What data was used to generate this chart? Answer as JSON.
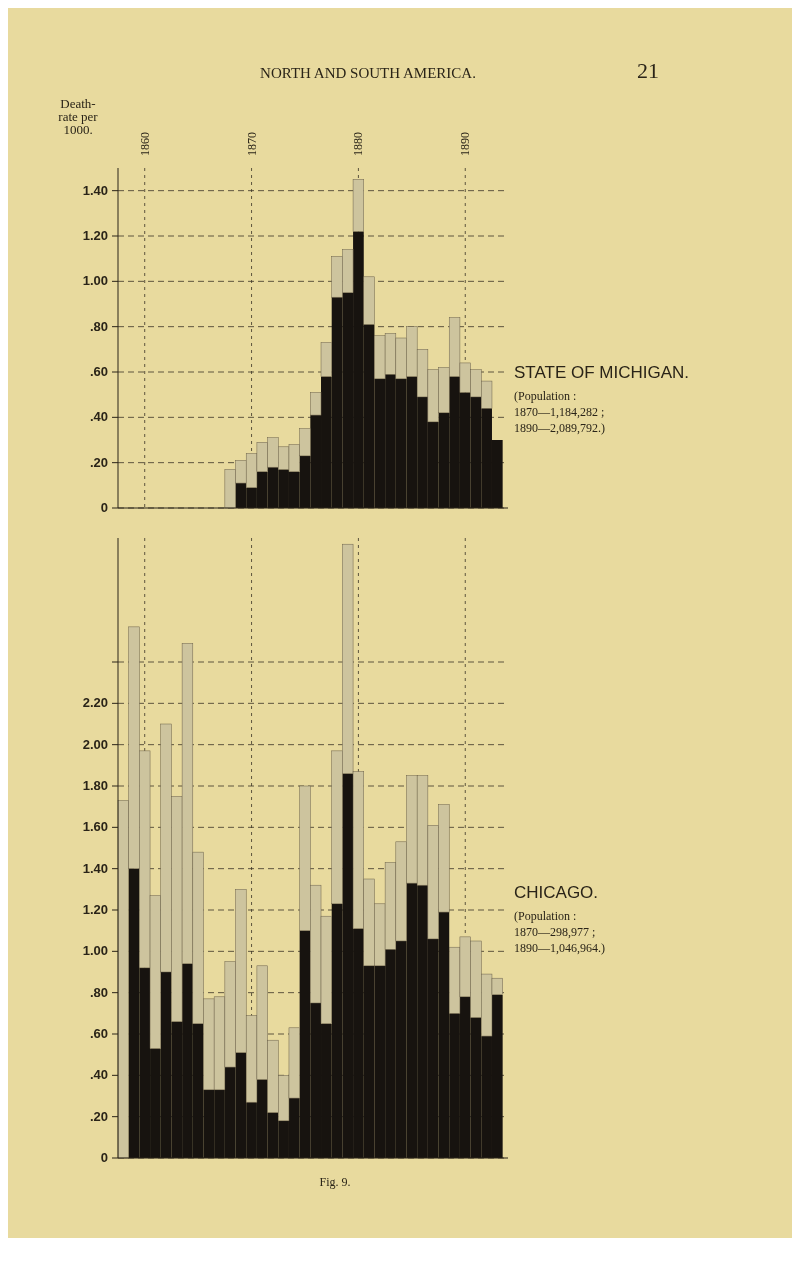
{
  "chart_data": [
    {
      "type": "bar",
      "title": "STATE OF MICHIGAN.",
      "subtitle": "(Population :\n1870—1,184,282 ;\n1890—2,089,792.)",
      "ylabel": "Death-\nrate per\n1000.",
      "annotations": [
        "NORTH AND SOUTH AMERICA.",
        "21"
      ],
      "x": [
        1868,
        1869,
        1870,
        1871,
        1872,
        1873,
        1874,
        1875,
        1876,
        1877,
        1878,
        1879,
        1880,
        1881,
        1882,
        1883,
        1884,
        1885,
        1886,
        1887,
        1888,
        1889,
        1890,
        1891,
        1892,
        1893
      ],
      "stacked": true,
      "series": [
        {
          "color": "#17130f",
          "values": [
            0,
            0.11,
            0.09,
            0.16,
            0.18,
            0.17,
            0.16,
            0.23,
            0.41,
            0.58,
            0.93,
            0.95,
            1.22,
            0.81,
            0.57,
            0.59,
            0.57,
            0.58,
            0.49,
            0.38,
            0.42,
            0.58,
            0.51,
            0.49,
            0.44,
            0.3
          ]
        },
        {
          "color": "#cdc49e",
          "values": [
            0.17,
            0.1,
            0.15,
            0.13,
            0.13,
            0.1,
            0.12,
            0.12,
            0.1,
            0.15,
            0.18,
            0.19,
            0.23,
            0.21,
            0.19,
            0.18,
            0.18,
            0.22,
            0.21,
            0.23,
            0.2,
            0.26,
            0.13,
            0.12,
            0.12,
            0
          ]
        }
      ],
      "xlim": [
        1857.5,
        1894
      ],
      "xticks": [
        1860,
        1870,
        1880,
        1890
      ],
      "ylim": [
        0,
        1.5
      ],
      "yticks": [
        0,
        {
          "value": 0.2,
          "label": ".20"
        },
        {
          "value": 0.4,
          "label": ".40"
        },
        {
          "value": 0.6,
          "label": ".60"
        },
        {
          "value": 0.8,
          "label": ".80"
        },
        {
          "value": 1,
          "label": "1.00"
        },
        {
          "value": 1.2,
          "label": "1.20"
        },
        {
          "value": 1.4,
          "label": "1.40"
        }
      ],
      "grid": true
    },
    {
      "type": "bar",
      "title": "CHICAGO.",
      "subtitle": "(Population :\n1870—298,977 ;\n1890—1,046,964.)",
      "annotations": [
        "Fig. 9."
      ],
      "x": [
        1858,
        1859,
        1860,
        1861,
        1862,
        1863,
        1864,
        1865,
        1866,
        1867,
        1868,
        1869,
        1870,
        1871,
        1872,
        1873,
        1874,
        1875,
        1876,
        1877,
        1878,
        1879,
        1880,
        1881,
        1882,
        1883,
        1884,
        1885,
        1886,
        1887,
        1888,
        1889,
        1890,
        1891,
        1892,
        1893
      ],
      "stacked": true,
      "series": [
        {
          "color": "#17130f",
          "values": [
            0,
            1.4,
            0.92,
            0.53,
            0.9,
            0.66,
            0.94,
            0.65,
            0.33,
            0.33,
            0.44,
            0.51,
            0.27,
            0.38,
            0.22,
            0.18,
            0.29,
            1.1,
            0.75,
            0.65,
            1.23,
            1.86,
            1.11,
            0.93,
            0.93,
            1.01,
            1.05,
            1.33,
            1.32,
            1.06,
            1.19,
            0.7,
            0.78,
            0.68,
            0.59,
            0.79
          ]
        },
        {
          "color": "#cdc49e",
          "values": [
            1.73,
            1.17,
            1.05,
            0.74,
            1.2,
            1.09,
            1.55,
            0.83,
            0.44,
            0.45,
            0.51,
            0.79,
            0.42,
            0.55,
            0.35,
            0.22,
            0.34,
            0.7,
            0.57,
            0.52,
            0.74,
            1.11,
            0.76,
            0.42,
            0.3,
            0.42,
            0.48,
            0.52,
            0.53,
            0.55,
            0.52,
            0.32,
            0.29,
            0.37,
            0.3,
            0.08
          ]
        }
      ],
      "xlim": [
        1857.5,
        1894
      ],
      "xticks": [
        1860,
        1870,
        1880,
        1890
      ],
      "ylim": [
        0,
        3
      ],
      "yticks": [
        0,
        {
          "value": 0.2,
          "label": ".20"
        },
        {
          "value": 0.4,
          "label": ".40"
        },
        {
          "value": 0.6,
          "label": ".60"
        },
        {
          "value": 0.8,
          "label": ".80"
        },
        {
          "value": 1,
          "label": "1.00"
        },
        {
          "value": 1.2,
          "label": "1.20"
        },
        {
          "value": 1.4,
          "label": "1.40"
        },
        {
          "value": 1.6,
          "label": "1.60"
        },
        {
          "value": 1.8,
          "label": "1.80"
        },
        {
          "value": 2,
          "label": "2.00"
        },
        {
          "value": 2.2,
          "label": "2.20"
        },
        {
          "value": 2.4,
          "label": null
        }
      ],
      "tick_labels": "y",
      "grid": true
    }
  ]
}
